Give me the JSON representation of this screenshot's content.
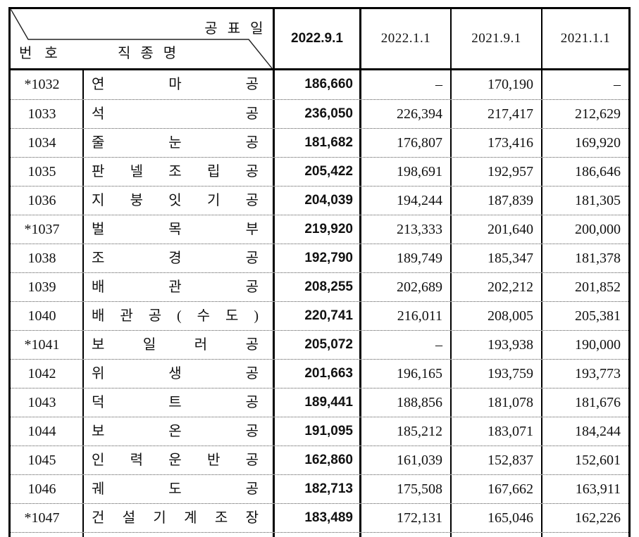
{
  "colors": {
    "border": "#000000",
    "dotted_separator": "#555555",
    "text": "#111111",
    "background": "#ffffff"
  },
  "header": {
    "corner": {
      "publish_date_label": "공 표 일",
      "number_label": "번 호",
      "job_name_label": "직 종 명"
    },
    "columns": [
      "2022.9.1",
      "2022.1.1",
      "2021.9.1",
      "2021.1.1"
    ]
  },
  "rows": [
    {
      "no": "*1032",
      "job": "연 마 공",
      "values": [
        "186,660",
        "–",
        "170,190",
        "–"
      ]
    },
    {
      "no": "1033",
      "job": "석 공",
      "values": [
        "236,050",
        "226,394",
        "217,417",
        "212,629"
      ]
    },
    {
      "no": "1034",
      "job": "줄 눈 공",
      "values": [
        "181,682",
        "176,807",
        "173,416",
        "169,920"
      ]
    },
    {
      "no": "1035",
      "job": "판 넬 조 립 공",
      "values": [
        "205,422",
        "198,691",
        "192,957",
        "186,646"
      ]
    },
    {
      "no": "1036",
      "job": "지 붕 잇 기 공",
      "values": [
        "204,039",
        "194,244",
        "187,839",
        "181,305"
      ]
    },
    {
      "no": "*1037",
      "job": "벌 목 부",
      "values": [
        "219,920",
        "213,333",
        "201,640",
        "200,000"
      ]
    },
    {
      "no": "1038",
      "job": "조 경 공",
      "values": [
        "192,790",
        "189,749",
        "185,347",
        "181,378"
      ]
    },
    {
      "no": "1039",
      "job": "배 관 공",
      "values": [
        "208,255",
        "202,689",
        "202,212",
        "201,852"
      ]
    },
    {
      "no": "1040",
      "job": "배 관 공 ( 수 도 )",
      "values": [
        "220,741",
        "216,011",
        "208,005",
        "205,381"
      ]
    },
    {
      "no": "*1041",
      "job": "보 일 러 공",
      "values": [
        "205,072",
        "–",
        "193,938",
        "190,000"
      ]
    },
    {
      "no": "1042",
      "job": "위 생 공",
      "values": [
        "201,663",
        "196,165",
        "193,759",
        "193,773"
      ]
    },
    {
      "no": "1043",
      "job": "덕 트 공",
      "values": [
        "189,441",
        "188,856",
        "181,078",
        "181,676"
      ]
    },
    {
      "no": "1044",
      "job": "보 온 공",
      "values": [
        "191,095",
        "185,212",
        "183,071",
        "184,244"
      ]
    },
    {
      "no": "1045",
      "job": "인 력 운 반 공",
      "values": [
        "162,860",
        "161,039",
        "152,837",
        "152,601"
      ]
    },
    {
      "no": "1046",
      "job": "궤 도 공",
      "values": [
        "182,713",
        "175,508",
        "167,662",
        "163,911"
      ]
    },
    {
      "no": "*1047",
      "job": "건 설 기 계 조 장",
      "values": [
        "183,489",
        "172,131",
        "165,046",
        "162,226"
      ]
    }
  ]
}
